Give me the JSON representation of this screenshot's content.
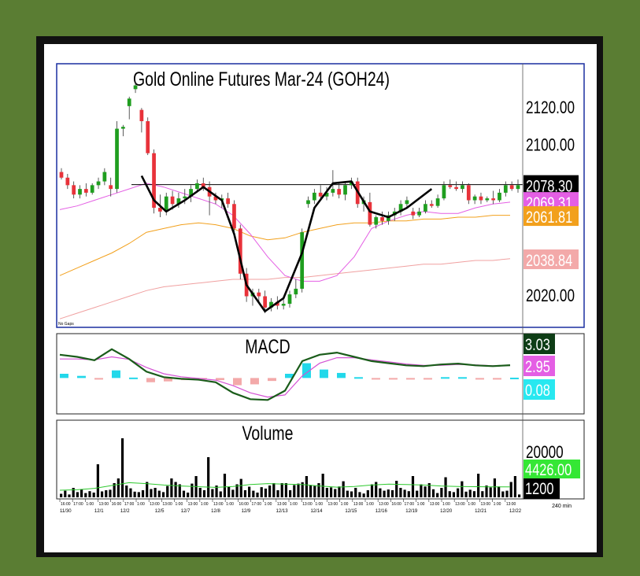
{
  "chart_data": {
    "type": "candlestick",
    "title": "Gold  Online  Futures  Mar-24  (GOH24)",
    "interval": "240 min",
    "no_gaps_label": "No Gaps",
    "price_axis": {
      "ylim": [
        2005,
        2140
      ],
      "ticks": [
        "2120.00",
        "2100.00",
        "2020.00"
      ]
    },
    "price_labels": {
      "last": {
        "value": "2078.30",
        "bg": "#000000",
        "fg": "#ffffff"
      },
      "ma_short": {
        "value": "2069.31",
        "bg": "#e45fe4",
        "fg": "#ffffff"
      },
      "ma_mid": {
        "value": "2061.81",
        "bg": "#f2a01c",
        "fg": "#ffffff"
      },
      "ma_long": {
        "value": "2038.84",
        "bg": "#f3a9a9",
        "fg": "#ffffff"
      }
    },
    "resistance_level": 2078.3,
    "candles": [
      [
        2085,
        2087,
        2081,
        2082
      ],
      [
        2082,
        2084,
        2076,
        2078
      ],
      [
        2078,
        2080,
        2071,
        2073
      ],
      [
        2073,
        2078,
        2071,
        2076
      ],
      [
        2076,
        2079,
        2072,
        2074
      ],
      [
        2074,
        2079,
        2073,
        2078
      ],
      [
        2078,
        2082,
        2076,
        2080
      ],
      [
        2080,
        2087,
        2078,
        2085
      ],
      [
        2078,
        2082,
        2072,
        2076
      ],
      [
        2076,
        2112,
        2074,
        2108
      ],
      [
        2108,
        2110,
        2104,
        2109
      ],
      [
        2120,
        2125,
        2113,
        2124
      ],
      [
        2129,
        2133,
        2127,
        2131
      ],
      [
        2118,
        2119,
        2106,
        2112
      ],
      [
        2112,
        2114,
        2094,
        2095
      ],
      [
        2095,
        2097,
        2063,
        2066
      ],
      [
        2066,
        2073,
        2061,
        2064
      ],
      [
        2064,
        2074,
        2062,
        2072
      ],
      [
        2072,
        2075,
        2065,
        2068
      ],
      [
        2068,
        2074,
        2066,
        2071
      ],
      [
        2071,
        2076,
        2068,
        2072
      ],
      [
        2072,
        2078,
        2069,
        2076
      ],
      [
        2076,
        2081,
        2074,
        2079
      ],
      [
        2079,
        2082,
        2075,
        2077
      ],
      [
        2077,
        2080,
        2062,
        2072
      ],
      [
        2072,
        2074,
        2068,
        2070
      ],
      [
        2070,
        2073,
        2066,
        2071
      ],
      [
        2071,
        2074,
        2066,
        2068
      ],
      [
        2068,
        2070,
        2052,
        2055
      ],
      [
        2055,
        2057,
        2028,
        2031
      ],
      [
        2031,
        2034,
        2016,
        2019
      ],
      [
        2019,
        2023,
        2014,
        2021
      ],
      [
        2021,
        2023,
        2016,
        2019
      ],
      [
        2019,
        2022,
        2010,
        2013
      ],
      [
        2013,
        2018,
        2011,
        2016
      ],
      [
        2016,
        2019,
        2012,
        2014
      ],
      [
        2014,
        2018,
        2012,
        2015
      ],
      [
        2015,
        2022,
        2013,
        2020
      ],
      [
        2020,
        2028,
        2018,
        2023
      ],
      [
        2023,
        2055,
        2021,
        2053
      ],
      [
        2068,
        2072,
        2066,
        2070
      ],
      [
        2070,
        2076,
        2068,
        2074
      ],
      [
        2074,
        2078,
        2071,
        2072
      ],
      [
        2072,
        2077,
        2070,
        2074
      ],
      [
        2074,
        2086,
        2072,
        2076
      ],
      [
        2076,
        2079,
        2071,
        2073
      ],
      [
        2073,
        2080,
        2070,
        2078
      ],
      [
        2078,
        2082,
        2076,
        2080
      ],
      [
        2080,
        2082,
        2066,
        2068
      ],
      [
        2068,
        2072,
        2064,
        2070
      ],
      [
        2069,
        2074,
        2056,
        2057
      ],
      [
        2057,
        2062,
        2055,
        2061
      ],
      [
        2061,
        2064,
        2057,
        2059
      ],
      [
        2059,
        2064,
        2057,
        2062
      ],
      [
        2062,
        2066,
        2059,
        2064
      ],
      [
        2064,
        2070,
        2062,
        2068
      ],
      [
        2068,
        2072,
        2066,
        2070
      ],
      [
        2064,
        2066,
        2060,
        2062
      ],
      [
        2062,
        2066,
        2061,
        2064
      ],
      [
        2064,
        2070,
        2063,
        2068
      ],
      [
        2068,
        2070,
        2066,
        2067
      ],
      [
        2067,
        2073,
        2066,
        2071
      ],
      [
        2071,
        2080,
        2070,
        2078
      ],
      [
        2078,
        2081,
        2076,
        2077
      ],
      [
        2077,
        2080,
        2075,
        2076
      ],
      [
        2076,
        2080,
        2074,
        2078
      ],
      [
        2078,
        2079,
        2068,
        2070
      ],
      [
        2070,
        2073,
        2068,
        2072
      ],
      [
        2072,
        2074,
        2068,
        2070
      ],
      [
        2070,
        2072,
        2069,
        2071
      ],
      [
        2071,
        2075,
        2068,
        2070
      ],
      [
        2070,
        2076,
        2069,
        2074
      ],
      [
        2074,
        2080,
        2072,
        2078
      ],
      [
        2078,
        2080,
        2075,
        2076
      ],
      [
        2076,
        2081,
        2074,
        2078
      ]
    ],
    "ma_short_path": [
      2065,
      2067,
      2070,
      2073,
      2076,
      2079,
      2077,
      2074,
      2071,
      2068,
      2062,
      2052,
      2040,
      2030,
      2027,
      2027,
      2030,
      2040,
      2055,
      2059,
      2062,
      2064,
      2063,
      2063,
      2066,
      2068,
      2069
    ],
    "ma_mid_path": [
      2030,
      2034,
      2038,
      2042,
      2047,
      2053,
      2055,
      2057,
      2058,
      2057,
      2055,
      2051,
      2049,
      2050,
      2053,
      2055,
      2057,
      2058,
      2058,
      2059,
      2059,
      2060,
      2060,
      2061,
      2061,
      2062,
      2062
    ],
    "ma_long_path": [
      2007,
      2010,
      2013,
      2016,
      2019,
      2022,
      2024,
      2025,
      2026,
      2027,
      2028,
      2028,
      2028,
      2029,
      2029,
      2030,
      2031,
      2032,
      2033,
      2034,
      2035,
      2036,
      2036,
      2037,
      2038,
      2038,
      2039
    ],
    "macd": {
      "title": "MACD",
      "labels": {
        "macd": {
          "value": "3.03",
          "bg": "#0e3d16",
          "fg": "#ffffff"
        },
        "signal": {
          "value": "2.95",
          "bg": "#e45fe4",
          "fg": "#ffffff"
        },
        "histogram": {
          "value": "0.08",
          "bg": "#28e8f0",
          "fg": "#ffffff"
        }
      },
      "macd_path": [
        5.5,
        5.0,
        4.2,
        6.8,
        4.5,
        1.5,
        0.2,
        -0.2,
        -0.4,
        -1.0,
        -3.5,
        -5.0,
        -5.2,
        -3.0,
        4.0,
        5.5,
        6.0,
        5.0,
        4.0,
        3.5,
        3.0,
        2.8,
        3.2,
        3.4,
        3.0,
        2.8,
        3.03
      ],
      "signal_path": [
        4.5,
        4.5,
        4.3,
        5.0,
        4.4,
        2.5,
        1.0,
        0.3,
        -0.1,
        -0.5,
        -1.8,
        -3.5,
        -4.5,
        -4.0,
        0.5,
        3.5,
        4.8,
        4.8,
        4.3,
        3.8,
        3.3,
        3.0,
        3.0,
        3.2,
        3.1,
        2.9,
        2.95
      ],
      "histogram": [
        1.0,
        0.5,
        -0.1,
        1.8,
        0.1,
        -1.0,
        -0.8,
        -0.5,
        -0.3,
        -0.5,
        -1.7,
        -1.5,
        -0.7,
        1.0,
        3.5,
        2.0,
        1.2,
        0.2,
        -0.3,
        -0.3,
        -0.3,
        -0.2,
        0.2,
        0.2,
        -0.1,
        -0.1,
        0.08
      ]
    },
    "volume": {
      "title": "Volume",
      "ticks": [
        "20000"
      ],
      "labels": {
        "avg": {
          "value": "4426.00",
          "bg": "#35e735",
          "fg": "#ffffff"
        },
        "last": {
          "value": "1200",
          "bg": "#000000",
          "fg": "#ffffff"
        }
      },
      "values": [
        1500,
        2800,
        1200,
        4000,
        2200,
        3500,
        1800,
        2600,
        2000,
        14000,
        2500,
        3000,
        3200,
        6000,
        8000,
        25000,
        5000,
        3800,
        2400,
        2200,
        3000,
        6500,
        3500,
        4000,
        2800,
        2200,
        4800,
        8000,
        6500,
        5500,
        2800,
        2000,
        5800,
        9000,
        4000,
        3000,
        17000,
        3500,
        5000,
        2500,
        10000,
        4500,
        3200,
        5500,
        7800,
        3000,
        4500,
        2800,
        2000,
        4300,
        3700,
        5000,
        6000,
        3000,
        6000,
        6000,
        3000,
        5200,
        5800,
        6400,
        9000,
        5200,
        4800,
        6000,
        10000,
        4000,
        4200,
        3500,
        4600,
        6800,
        2800,
        2500,
        4000,
        2200,
        1600,
        3000,
        5500,
        6500,
        3800,
        2800,
        3300,
        3000,
        7000,
        4000,
        3200,
        2600,
        9000,
        2800,
        5500,
        4600,
        6000,
        3400,
        1800,
        4000,
        8500,
        2600,
        2200,
        3800,
        6800,
        2400,
        3200,
        2600,
        10000,
        2600,
        5000,
        4200,
        8000,
        4600,
        2500,
        2800,
        6500,
        9000,
        1200
      ],
      "avg_path": [
        3000,
        3200,
        3800,
        5000,
        6200,
        5800,
        5200,
        4800,
        4500,
        4200,
        4600,
        5400,
        5800,
        5600,
        5400,
        4800,
        4300,
        4600,
        5200,
        5600,
        5400,
        5200,
        4800,
        4600,
        4500,
        4400,
        4426
      ]
    },
    "time_labels": [
      {
        "text": "11/30",
        "i": 0
      },
      {
        "text": "12/1",
        "i": 8
      },
      {
        "text": "12/2",
        "i": 14
      },
      {
        "text": "12/5",
        "i": 22
      },
      {
        "text": "12/7",
        "i": 28
      },
      {
        "text": "12/8",
        "i": 35
      },
      {
        "text": "12/9",
        "i": 42
      },
      {
        "text": "12/13",
        "i": 50
      },
      {
        "text": "12/14",
        "i": 58
      },
      {
        "text": "12/15",
        "i": 66
      },
      {
        "text": "12/16",
        "i": 73
      },
      {
        "text": "12/19",
        "i": 80
      },
      {
        "text": "12/20",
        "i": 88
      },
      {
        "text": "12/21",
        "i": 96
      },
      {
        "text": "12/22",
        "i": 104
      }
    ],
    "session_labels": [
      "16:00",
      "17:00",
      "1:00",
      "13:00",
      "16:00",
      "17:00",
      "1:00",
      "13:00",
      "13:00",
      "1:00",
      "13:00",
      "1:00",
      "13:00",
      "1:00",
      "16:00",
      "17:00",
      "1:00",
      "13:00",
      "1:00",
      "13:00",
      "1:00",
      "13:00",
      "1:00",
      "13:00",
      "1:00",
      "13:00",
      "16:00",
      "17:00",
      "1:00",
      "13:00",
      "1:00",
      "13:00",
      "1:00",
      "13:00",
      "1:00",
      "13:00"
    ],
    "colors": {
      "up": "#1f9e1f",
      "down": "#e8323a",
      "bg": "#ffffff",
      "border": "#1a2fa0",
      "macd_line": "#1a5c1a",
      "signal_line": "#d452d4",
      "hist_pos": "#22d8ea",
      "hist_neg": "#f3a9a9",
      "volume_bar": "#000000",
      "volume_avg": "#2ec92e",
      "ma_short": "#e45fe4",
      "ma_mid": "#f2a01c",
      "ma_long": "#f0a0a0"
    }
  }
}
